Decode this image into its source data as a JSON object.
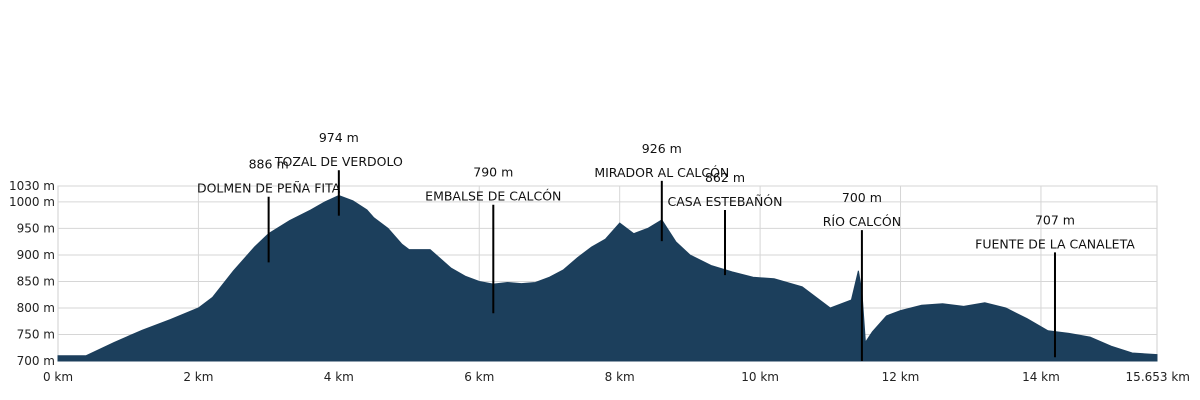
{
  "chart_data": {
    "type": "area",
    "title": "",
    "xlabel": "",
    "ylabel": "",
    "x_unit": "km",
    "y_unit": "m",
    "xlim": [
      0,
      15.653
    ],
    "ylim": [
      700,
      1030
    ],
    "grid": true,
    "x_ticks": [
      "0 km",
      "2 km",
      "4 km",
      "6 km",
      "8 km",
      "10 km",
      "12 km",
      "14 km",
      "15.653 km"
    ],
    "x_tick_values": [
      0,
      2,
      4,
      6,
      8,
      10,
      12,
      14,
      15.653
    ],
    "y_ticks": [
      "700 m",
      "750 m",
      "800 m",
      "850 m",
      "900 m",
      "950 m",
      "1000 m",
      "1030 m"
    ],
    "y_tick_values": [
      700,
      750,
      800,
      850,
      900,
      950,
      1000,
      1030
    ],
    "series": [
      {
        "fill_color": "#1c3f5c",
        "x": [
          0,
          0.4,
          0.8,
          1.2,
          1.6,
          2.0,
          2.2,
          2.5,
          2.8,
          3.0,
          3.3,
          3.6,
          3.8,
          4.0,
          4.2,
          4.4,
          4.5,
          4.7,
          4.9,
          5.0,
          5.3,
          5.6,
          5.8,
          6.0,
          6.2,
          6.4,
          6.6,
          6.8,
          7.0,
          7.2,
          7.4,
          7.6,
          7.8,
          8.0,
          8.2,
          8.4,
          8.6,
          8.8,
          9.0,
          9.3,
          9.6,
          9.9,
          10.2,
          10.6,
          11.0,
          11.3,
          11.4,
          11.45,
          11.5,
          11.6,
          11.8,
          12.0,
          12.3,
          12.6,
          12.9,
          13.2,
          13.5,
          13.8,
          14.1,
          14.4,
          14.7,
          15.0,
          15.3,
          15.653
        ],
        "y": [
          710,
          710,
          735,
          758,
          778,
          800,
          820,
          870,
          915,
          940,
          965,
          985,
          1000,
          1012,
          1002,
          985,
          970,
          950,
          920,
          910,
          910,
          875,
          860,
          850,
          845,
          848,
          846,
          848,
          858,
          872,
          895,
          915,
          930,
          960,
          940,
          950,
          966,
          925,
          900,
          880,
          868,
          858,
          855,
          840,
          800,
          815,
          870,
          830,
          735,
          755,
          785,
          795,
          805,
          808,
          803,
          810,
          800,
          780,
          757,
          752,
          745,
          728,
          715,
          712
        ]
      }
    ],
    "annotations": [
      {
        "value": "886 m",
        "name": "DOLMEN DE PEÑA FITA",
        "x": 3.0,
        "y": 886,
        "label_top_y": 1055
      },
      {
        "value": "974 m",
        "name": "TOZAL DE VERDOLO",
        "x": 4.0,
        "y": 974,
        "label_top_y": 1105
      },
      {
        "value": "790 m",
        "name": "EMBALSE DE CALCÓN",
        "x": 6.2,
        "y": 790,
        "label_top_y": 1040
      },
      {
        "value": "926 m",
        "name": "MIRADOR AL CALCÓN",
        "x": 8.6,
        "y": 926,
        "label_top_y": 1085
      },
      {
        "value": "862 m",
        "name": "CASA ESTEBAÑÓN",
        "x": 9.5,
        "y": 862,
        "label_top_y": 1030
      },
      {
        "value": "700 m",
        "name": "RÍO CALCÓN",
        "x": 11.45,
        "y": 700,
        "label_top_y": 992
      },
      {
        "value": "707 m",
        "name": "FUENTE DE LA CANALETA",
        "x": 14.2,
        "y": 707,
        "label_top_y": 950
      }
    ]
  }
}
